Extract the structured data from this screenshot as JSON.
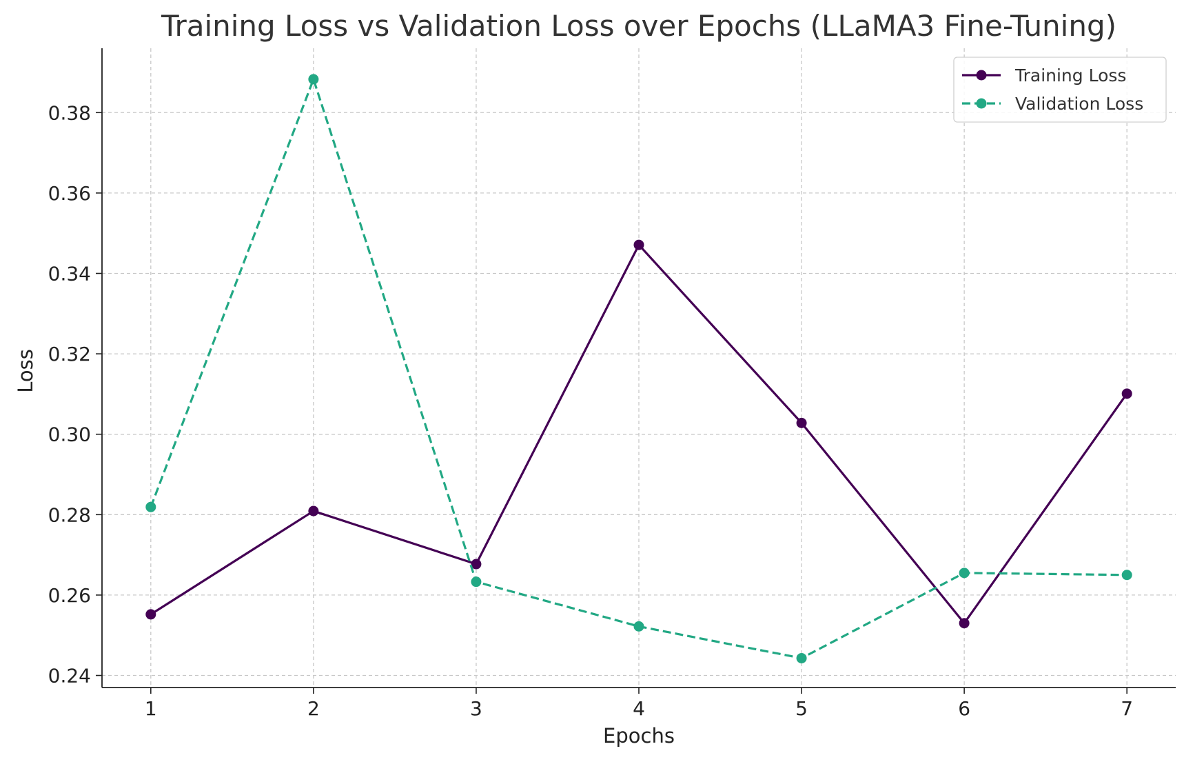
{
  "chart_data": {
    "type": "line",
    "title": "Training Loss vs Validation Loss over Epochs (LLaMA3 Fine-Tuning)",
    "xlabel": "Epochs",
    "ylabel": "Loss",
    "x": [
      1,
      2,
      3,
      4,
      5,
      6,
      7
    ],
    "xticks": [
      "1",
      "2",
      "3",
      "4",
      "5",
      "6",
      "7"
    ],
    "yticks": [
      "0.24",
      "0.26",
      "0.28",
      "0.30",
      "0.32",
      "0.34",
      "0.36",
      "0.38"
    ],
    "xlim": [
      0.7,
      7.3
    ],
    "ylim": [
      0.237,
      0.396
    ],
    "grid": true,
    "legend_position": "top-right",
    "series": [
      {
        "name": "Training Loss",
        "values": [
          0.2552,
          0.2809,
          0.2677,
          0.3471,
          0.3028,
          0.253,
          0.3101
        ],
        "color": "#440154",
        "line_style": "solid",
        "marker": "circle"
      },
      {
        "name": "Validation Loss",
        "values": [
          0.2819,
          0.3883,
          0.2633,
          0.2522,
          0.2443,
          0.2655,
          0.265
        ],
        "color": "#22a884",
        "line_style": "dashed",
        "marker": "circle"
      }
    ]
  }
}
